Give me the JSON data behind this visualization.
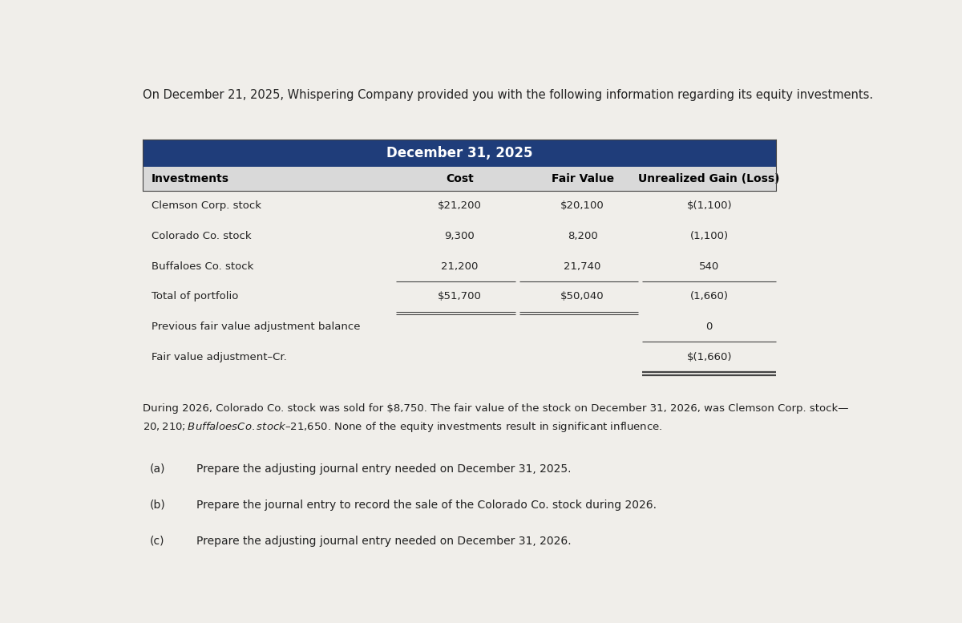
{
  "title_text": "On December 21, 2025, Whispering Company provided you with the following information regarding its equity investments.",
  "header_main": "December 31, 2025",
  "col_headers": [
    "Investments",
    "Cost",
    "Fair Value",
    "Unrealized Gain (Loss)"
  ],
  "rows": [
    [
      "Clemson Corp. stock",
      "$21,200",
      "$20,100",
      "$(1,100)"
    ],
    [
      "Colorado Co. stock",
      "9,300",
      "8,200",
      "(1,100)"
    ],
    [
      "Buffaloes Co. stock",
      "21,200",
      "21,740",
      "540"
    ],
    [
      "Total of portfolio",
      "$51,700",
      "$50,040",
      "(1,660)"
    ],
    [
      "Previous fair value adjustment balance",
      "",
      "",
      "0"
    ],
    [
      "Fair value adjustment–Cr.",
      "",
      "",
      "$(1,660)"
    ]
  ],
  "paragraph": "During 2026, Colorado Co. stock was sold for $8,750. The fair value of the stock on December 31, 2026, was Clemson Corp. stock—\n$20,210; Buffaloes Co. stock–$21,650. None of the equity investments result in significant influence.",
  "questions": [
    [
      "(a)",
      "Prepare the adjusting journal entry needed on December 31, 2025."
    ],
    [
      "(b)",
      "Prepare the journal entry to record the sale of the Colorado Co. stock during 2026."
    ],
    [
      "(c)",
      "Prepare the adjusting journal entry needed on December 31, 2026."
    ]
  ],
  "header_bg": "#1f3d7a",
  "header_text_color": "#ffffff",
  "subheader_bg": "#d9d9d9",
  "subheader_text_color": "#000000",
  "body_text_color": "#222222",
  "table_border_color": "#444444",
  "fig_bg": "#f0eeea"
}
